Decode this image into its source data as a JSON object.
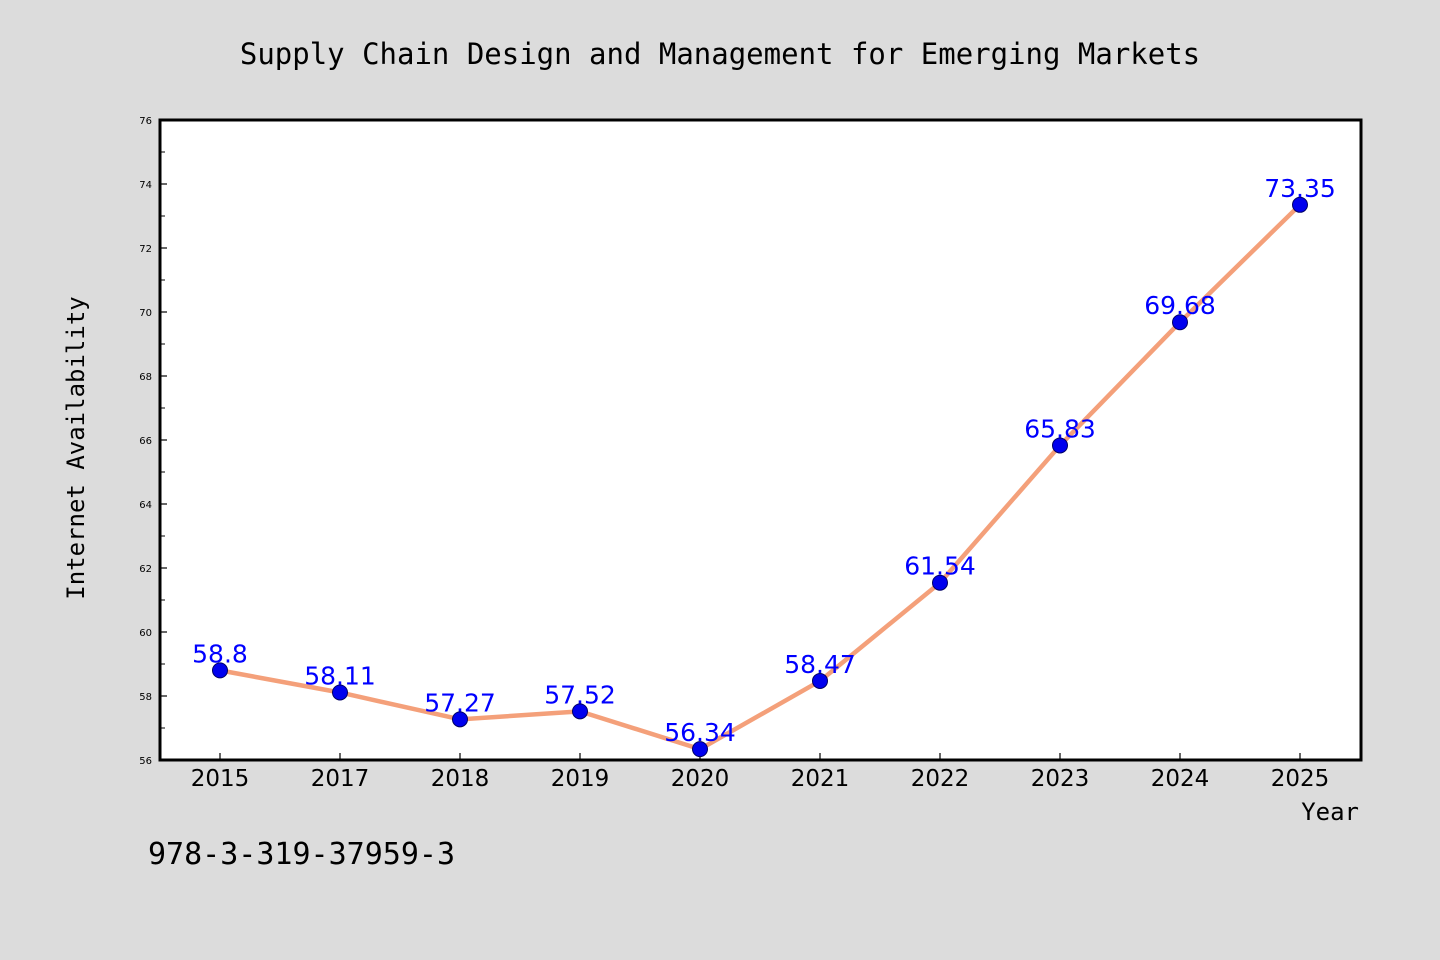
{
  "chart_data": {
    "type": "line",
    "title": "Supply Chain Design and Management for Emerging Markets",
    "xlabel": "Year",
    "ylabel": "Internet Availability",
    "categories": [
      "2015",
      "2017",
      "2018",
      "2019",
      "2020",
      "2021",
      "2022",
      "2023",
      "2024",
      "2025"
    ],
    "series": [
      {
        "values": [
          58.8,
          58.11,
          57.27,
          57.52,
          56.34,
          58.47,
          61.54,
          65.83,
          69.68,
          73.35
        ],
        "data_labels": [
          "58.8",
          "58.11",
          "57.27",
          "57.52",
          "56.34",
          "58.47",
          "61.54",
          "65.83",
          "69.68",
          "73.35"
        ]
      }
    ],
    "ylim": [
      56,
      76
    ],
    "y_ticks": [
      "56",
      "58",
      "60",
      "62",
      "64",
      "66",
      "68",
      "70",
      "72",
      "74",
      "76"
    ],
    "grid": false,
    "legend": false,
    "colors": {
      "line": "#f4a07a",
      "marker": "#0000ee",
      "data_label": "#0000ff",
      "background": "#dcdcdc",
      "plot_background": "#ffffff"
    }
  },
  "footer_text": "978-3-319-37959-3"
}
